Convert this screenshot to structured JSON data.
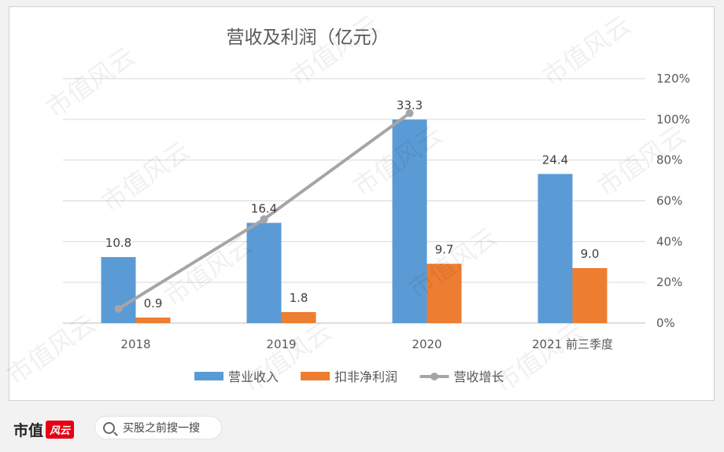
{
  "chart_data": {
    "type": "bar",
    "title": "营收及利润（亿元）",
    "categories": [
      "2018",
      "2019",
      "2020",
      "2021 前三季度"
    ],
    "series": [
      {
        "name": "营业收入",
        "type": "bar",
        "axis": "left",
        "color": "#5b9bd5",
        "values": [
          10.8,
          16.4,
          33.3,
          24.4
        ],
        "labels": [
          "10.8",
          "16.4",
          "33.3",
          "24.4"
        ]
      },
      {
        "name": "扣非净利润",
        "type": "bar",
        "axis": "left",
        "color": "#ed7d31",
        "values": [
          0.9,
          1.8,
          9.7,
          9.0
        ],
        "labels": [
          "0.9",
          "1.8",
          "9.7",
          "9.0"
        ]
      },
      {
        "name": "营收增长",
        "type": "line",
        "axis": "right",
        "color": "#a5a5a5",
        "values": [
          7,
          51,
          103,
          null
        ]
      }
    ],
    "left_ylim": [
      0,
      40
    ],
    "right_ylim": [
      0,
      120
    ],
    "right_ticks": [
      "0%",
      "20%",
      "40%",
      "60%",
      "80%",
      "100%",
      "120%"
    ],
    "grid": true,
    "legend": "bottom"
  },
  "watermark_text": "市值风云",
  "footer": {
    "brand_text": "市值",
    "brand_badge": "风云",
    "search_placeholder": "买股之前搜一搜"
  }
}
